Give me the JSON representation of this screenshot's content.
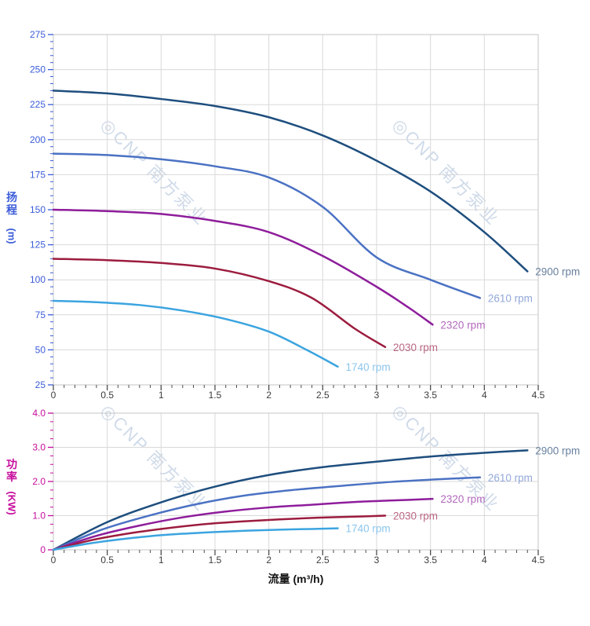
{
  "watermark": {
    "logo_glyph": "◎",
    "text": "CNP 南方泵业",
    "color": "#cfdae9"
  },
  "style_colors": {
    "grid": "#d9d9d9",
    "plot_border": "#c6c6c6",
    "x_tick": "#4d4d4d",
    "x_tick_label": "#3c3c3c"
  },
  "chart_data": [
    {
      "type": "line",
      "role": "pump-head-vs-flow",
      "ylabel": "扬程",
      "ylabel_unit": "(m)",
      "axis_color": "#3b5cd9",
      "grid": true,
      "legend_position": "end-of-curve",
      "x": {
        "min": 0,
        "max": 4.5,
        "major_step": 0.5,
        "minor_step": 0.1,
        "tick_labels": [
          "0",
          "0.5",
          "1",
          "1.5",
          "2",
          "2.5",
          "3",
          "3.5",
          "4",
          "4.5"
        ]
      },
      "y": {
        "min": 25,
        "max": 275,
        "major_step": 25,
        "minor_step": 5,
        "tick_labels": [
          "275",
          "250",
          "225",
          "200",
          "175",
          "150",
          "125",
          "100",
          "75",
          "50",
          "25"
        ]
      },
      "series": [
        {
          "name": "2900 rpm",
          "color": "#1e4e7e",
          "label_color": "#69819f",
          "points": [
            [
              0,
              235
            ],
            [
              0.5,
              233
            ],
            [
              1,
              229
            ],
            [
              1.5,
              224
            ],
            [
              2,
              216
            ],
            [
              2.5,
              203
            ],
            [
              3,
              185
            ],
            [
              3.5,
              163
            ],
            [
              4,
              134
            ],
            [
              4.4,
              106
            ]
          ]
        },
        {
          "name": "2610 rpm",
          "color": "#4b72c3",
          "label_color": "#93a8d9",
          "points": [
            [
              0,
              190
            ],
            [
              0.5,
              189
            ],
            [
              1,
              186
            ],
            [
              1.5,
              181
            ],
            [
              2,
              173
            ],
            [
              2.5,
              152
            ],
            [
              3,
              116
            ],
            [
              3.5,
              100
            ],
            [
              3.96,
              87
            ]
          ]
        },
        {
          "name": "2320 rpm",
          "color": "#8e1d9b",
          "label_color": "#b269bc",
          "points": [
            [
              0,
              150
            ],
            [
              0.5,
              149
            ],
            [
              1,
              147
            ],
            [
              1.5,
              142
            ],
            [
              2,
              134
            ],
            [
              2.5,
              117
            ],
            [
              3,
              95
            ],
            [
              3.3,
              80
            ],
            [
              3.52,
              68
            ]
          ]
        },
        {
          "name": "2030 rpm",
          "color": "#9c1c3e",
          "label_color": "#ba6880",
          "points": [
            [
              0,
              115
            ],
            [
              0.5,
              114
            ],
            [
              1,
              112
            ],
            [
              1.5,
              108
            ],
            [
              2,
              99
            ],
            [
              2.4,
              87
            ],
            [
              2.8,
              65
            ],
            [
              3.08,
              52
            ]
          ]
        },
        {
          "name": "1740 rpm",
          "color": "#3ba4e0",
          "label_color": "#8cc5ec",
          "points": [
            [
              0,
              85
            ],
            [
              0.4,
              84
            ],
            [
              0.8,
              82
            ],
            [
              1.2,
              78
            ],
            [
              1.6,
              72
            ],
            [
              2,
              63
            ],
            [
              2.35,
              50
            ],
            [
              2.64,
              38
            ]
          ]
        }
      ]
    },
    {
      "type": "line",
      "role": "pump-power-vs-flow",
      "ylabel": "功率",
      "ylabel_unit": "(KW)",
      "xlabel": "流量 (m³/h)",
      "axis_color": "#c60d9c",
      "grid": true,
      "legend_position": "end-of-curve",
      "x": {
        "min": 0,
        "max": 4.5,
        "major_step": 0.5,
        "minor_step": 0.1,
        "tick_labels": [
          "0",
          "0.5",
          "1",
          "1.5",
          "2",
          "2.5",
          "3",
          "3.5",
          "4",
          "4.5"
        ]
      },
      "y": {
        "min": 0,
        "max": 4,
        "major_step": 1,
        "minor_step": 0.25,
        "tick_labels": [
          "4.0",
          "3.0",
          "2.0",
          "1.0",
          "0"
        ]
      },
      "series": [
        {
          "name": "2900 rpm",
          "color": "#1e4e7e",
          "label_color": "#69819f",
          "points": [
            [
              0,
              0
            ],
            [
              0.5,
              0.81
            ],
            [
              1,
              1.39
            ],
            [
              1.5,
              1.85
            ],
            [
              2,
              2.19
            ],
            [
              2.5,
              2.42
            ],
            [
              3,
              2.58
            ],
            [
              3.5,
              2.73
            ],
            [
              4,
              2.84
            ],
            [
              4.4,
              2.91
            ]
          ]
        },
        {
          "name": "2610 rpm",
          "color": "#4b72c3",
          "label_color": "#93a8d9",
          "points": [
            [
              0,
              0
            ],
            [
              0.45,
              0.59
            ],
            [
              0.9,
              1.01
            ],
            [
              1.35,
              1.35
            ],
            [
              1.8,
              1.6
            ],
            [
              2.25,
              1.76
            ],
            [
              2.7,
              1.88
            ],
            [
              3.15,
              1.99
            ],
            [
              3.6,
              2.07
            ],
            [
              3.96,
              2.12
            ]
          ]
        },
        {
          "name": "2320 rpm",
          "color": "#8e1d9b",
          "label_color": "#b269bc",
          "points": [
            [
              0,
              0
            ],
            [
              0.4,
              0.41
            ],
            [
              0.8,
              0.71
            ],
            [
              1.2,
              0.95
            ],
            [
              1.6,
              1.12
            ],
            [
              2,
              1.24
            ],
            [
              2.4,
              1.32
            ],
            [
              2.8,
              1.4
            ],
            [
              3.2,
              1.45
            ],
            [
              3.52,
              1.49
            ]
          ]
        },
        {
          "name": "2030 rpm",
          "color": "#9c1c3e",
          "label_color": "#ba6880",
          "points": [
            [
              0,
              0
            ],
            [
              0.35,
              0.28
            ],
            [
              0.7,
              0.48
            ],
            [
              1.05,
              0.63
            ],
            [
              1.4,
              0.75
            ],
            [
              1.75,
              0.83
            ],
            [
              2.1,
              0.89
            ],
            [
              2.45,
              0.94
            ],
            [
              2.8,
              0.97
            ],
            [
              3.08,
              1.0
            ]
          ]
        },
        {
          "name": "1740 rpm",
          "color": "#3ba4e0",
          "label_color": "#8cc5ec",
          "points": [
            [
              0,
              0
            ],
            [
              0.3,
              0.17
            ],
            [
              0.6,
              0.3
            ],
            [
              0.9,
              0.4
            ],
            [
              1.2,
              0.47
            ],
            [
              1.5,
              0.52
            ],
            [
              1.8,
              0.56
            ],
            [
              2.1,
              0.59
            ],
            [
              2.4,
              0.61
            ],
            [
              2.64,
              0.63
            ]
          ]
        }
      ]
    }
  ]
}
